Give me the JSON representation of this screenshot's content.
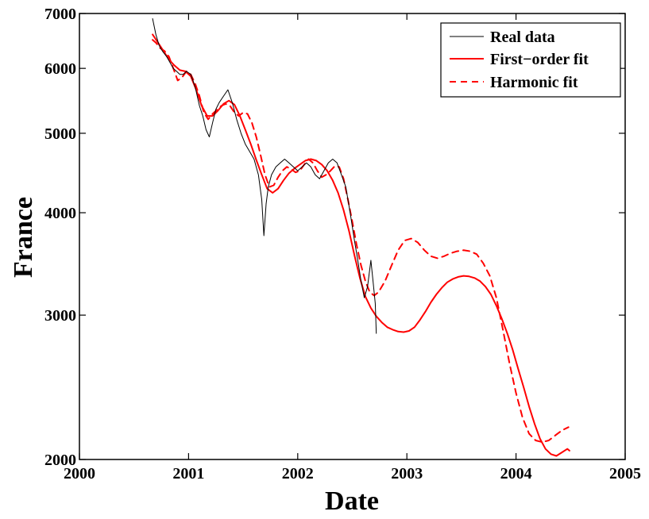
{
  "chart_data": {
    "type": "line",
    "title": "",
    "xlabel": "Date",
    "ylabel": "France",
    "xlim": [
      2000,
      2005
    ],
    "ylim": [
      2000,
      7000
    ],
    "yscale": "log",
    "grid": false,
    "legend_position": "top-right",
    "x_ticks": [
      2000,
      2001,
      2002,
      2003,
      2004,
      2005
    ],
    "y_ticks": [
      2000,
      3000,
      4000,
      5000,
      6000,
      7000
    ],
    "x_tick_labels": [
      "2000",
      "2001",
      "2002",
      "2003",
      "2004",
      "2005"
    ],
    "y_tick_labels": [
      "2000",
      "3000",
      "4000",
      "5000",
      "6000",
      "7000"
    ],
    "colors": {
      "real": "#000000",
      "fit": "#ff0000"
    },
    "series": [
      {
        "name": "Real data",
        "style": "solid-thin",
        "x": [
          2000.67,
          2000.7,
          2000.73,
          2000.76,
          2000.8,
          2000.83,
          2000.86,
          2000.89,
          2000.92,
          2000.95,
          2000.98,
          2001.02,
          2001.06,
          2001.1,
          2001.13,
          2001.16,
          2001.19,
          2001.22,
          2001.25,
          2001.28,
          2001.32,
          2001.36,
          2001.4,
          2001.44,
          2001.48,
          2001.52,
          2001.56,
          2001.6,
          2001.64,
          2001.67,
          2001.69,
          2001.71,
          2001.73,
          2001.76,
          2001.8,
          2001.84,
          2001.88,
          2001.92,
          2001.96,
          2002.0,
          2002.04,
          2002.08,
          2002.12,
          2002.16,
          2002.2,
          2002.24,
          2002.28,
          2002.32,
          2002.36,
          2002.4,
          2002.44,
          2002.48,
          2002.52,
          2002.55,
          2002.58,
          2002.61,
          2002.64,
          2002.67,
          2002.69,
          2002.71,
          2002.72
        ],
        "y": [
          6900,
          6600,
          6400,
          6300,
          6200,
          6100,
          6000,
          5950,
          5900,
          5900,
          5950,
          5900,
          5700,
          5400,
          5250,
          5050,
          4950,
          5150,
          5350,
          5450,
          5550,
          5650,
          5450,
          5200,
          5000,
          4850,
          4750,
          4650,
          4450,
          4150,
          3750,
          4100,
          4300,
          4450,
          4550,
          4600,
          4650,
          4600,
          4550,
          4500,
          4550,
          4600,
          4550,
          4450,
          4400,
          4500,
          4600,
          4650,
          4600,
          4450,
          4300,
          4000,
          3700,
          3500,
          3300,
          3150,
          3250,
          3500,
          3300,
          3100,
          2850
        ]
      },
      {
        "name": "First−order fit",
        "style": "solid",
        "x": [
          2000.67,
          2000.72,
          2000.77,
          2000.82,
          2000.87,
          2000.92,
          2000.97,
          2001.02,
          2001.07,
          2001.12,
          2001.17,
          2001.22,
          2001.27,
          2001.32,
          2001.37,
          2001.42,
          2001.47,
          2001.52,
          2001.57,
          2001.62,
          2001.67,
          2001.72,
          2001.77,
          2001.82,
          2001.87,
          2001.92,
          2001.97,
          2002.02,
          2002.07,
          2002.12,
          2002.17,
          2002.22,
          2002.27,
          2002.32,
          2002.37,
          2002.42,
          2002.47,
          2002.52,
          2002.57,
          2002.62,
          2002.67,
          2002.72,
          2002.77,
          2002.82,
          2002.87,
          2002.92,
          2002.97,
          2003.02,
          2003.07,
          2003.12,
          2003.17,
          2003.22,
          2003.27,
          2003.32,
          2003.37,
          2003.42,
          2003.47,
          2003.52,
          2003.57,
          2003.62,
          2003.67,
          2003.72,
          2003.77,
          2003.82,
          2003.87,
          2003.92,
          2003.97,
          2004.02,
          2004.07,
          2004.12,
          2004.17,
          2004.22,
          2004.27,
          2004.32,
          2004.37,
          2004.42,
          2004.47,
          2004.49
        ],
        "y": [
          6600,
          6450,
          6300,
          6150,
          6050,
          5970,
          5950,
          5870,
          5650,
          5400,
          5250,
          5250,
          5330,
          5430,
          5480,
          5420,
          5250,
          5050,
          4850,
          4640,
          4450,
          4280,
          4230,
          4280,
          4380,
          4470,
          4530,
          4580,
          4630,
          4650,
          4630,
          4580,
          4500,
          4380,
          4230,
          4030,
          3800,
          3550,
          3330,
          3160,
          3060,
          2990,
          2940,
          2900,
          2880,
          2865,
          2860,
          2870,
          2900,
          2960,
          3030,
          3110,
          3180,
          3240,
          3290,
          3320,
          3340,
          3350,
          3345,
          3330,
          3300,
          3250,
          3180,
          3080,
          2970,
          2850,
          2720,
          2580,
          2450,
          2320,
          2210,
          2120,
          2060,
          2030,
          2020,
          2040,
          2060,
          2050
        ]
      },
      {
        "name": "Harmonic fit",
        "style": "dashed",
        "x": [
          2000.67,
          2000.7,
          2000.74,
          2000.78,
          2000.82,
          2000.86,
          2000.9,
          2000.94,
          2000.98,
          2001.02,
          2001.06,
          2001.1,
          2001.14,
          2001.18,
          2001.22,
          2001.26,
          2001.3,
          2001.34,
          2001.38,
          2001.42,
          2001.46,
          2001.5,
          2001.54,
          2001.58,
          2001.62,
          2001.66,
          2001.7,
          2001.74,
          2001.78,
          2001.82,
          2001.86,
          2001.9,
          2001.94,
          2001.98,
          2002.02,
          2002.06,
          2002.1,
          2002.14,
          2002.18,
          2002.22,
          2002.26,
          2002.3,
          2002.34,
          2002.38,
          2002.42,
          2002.46,
          2002.5,
          2002.54,
          2002.58,
          2002.62,
          2002.66,
          2002.7,
          2002.74,
          2002.8,
          2002.86,
          2002.92,
          2002.98,
          2003.04,
          2003.1,
          2003.16,
          2003.22,
          2003.28,
          2003.34,
          2003.4,
          2003.46,
          2003.52,
          2003.58,
          2003.64,
          2003.7,
          2003.76,
          2003.82,
          2003.88,
          2003.94,
          2004.0,
          2004.06,
          2004.12,
          2004.18,
          2004.24,
          2004.3,
          2004.36,
          2004.42,
          2004.48
        ],
        "y": [
          6500,
          6450,
          6350,
          6300,
          6200,
          6000,
          5800,
          5850,
          5950,
          5900,
          5750,
          5550,
          5300,
          5200,
          5280,
          5340,
          5400,
          5430,
          5400,
          5300,
          5250,
          5300,
          5280,
          5150,
          4950,
          4700,
          4450,
          4300,
          4320,
          4420,
          4500,
          4550,
          4520,
          4480,
          4500,
          4580,
          4650,
          4600,
          4500,
          4420,
          4450,
          4500,
          4560,
          4550,
          4400,
          4150,
          3900,
          3650,
          3450,
          3300,
          3200,
          3170,
          3200,
          3300,
          3450,
          3600,
          3700,
          3720,
          3680,
          3600,
          3540,
          3520,
          3540,
          3570,
          3590,
          3600,
          3590,
          3560,
          3470,
          3350,
          3150,
          2880,
          2620,
          2410,
          2250,
          2150,
          2110,
          2100,
          2110,
          2140,
          2170,
          2190
        ]
      }
    ],
    "legend": [
      {
        "label": "Real data",
        "style": "solid-thin"
      },
      {
        "label": "First−order fit",
        "style": "solid"
      },
      {
        "label": "Harmonic fit",
        "style": "dashed"
      }
    ]
  }
}
